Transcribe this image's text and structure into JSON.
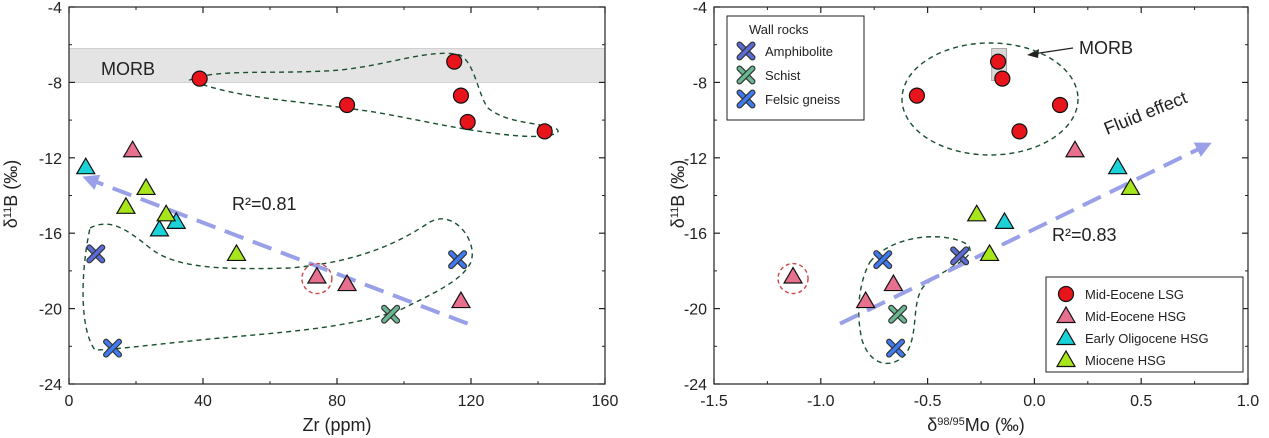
{
  "chart_data": [
    {
      "type": "scatter",
      "xlabel": "Zr (ppm)",
      "ylabel": "δ11B (‰)",
      "xlim": [
        0,
        160
      ],
      "ylim": [
        -24,
        -4
      ],
      "xticks": [
        "0",
        "40",
        "80",
        "120",
        "160"
      ],
      "yticks": [
        "-4",
        "-8",
        "-12",
        "-16",
        "-20",
        "-24"
      ],
      "annotations": {
        "morb": "MORB",
        "r2": "R²=0.81"
      },
      "morb_band": [
        -8,
        -6.2
      ],
      "series": [
        {
          "name": "Mid-Eocene LSG",
          "marker": "circle",
          "color": "#e8141b",
          "points": [
            [
              39,
              -7.8
            ],
            [
              83,
              -9.2
            ],
            [
              115,
              -6.9
            ],
            [
              117,
              -8.7
            ],
            [
              119,
              -10.1
            ],
            [
              142,
              -10.6
            ]
          ]
        },
        {
          "name": "Mid-Eocene HSG",
          "marker": "triangle",
          "color": "#e8708f",
          "points": [
            [
              19,
              -11.6
            ],
            [
              74,
              -18.3
            ],
            [
              83,
              -18.7
            ],
            [
              117,
              -19.6
            ]
          ]
        },
        {
          "name": "Early Oligocene HSG",
          "marker": "triangle",
          "color": "#19d3d9",
          "points": [
            [
              5,
              -12.5
            ],
            [
              27,
              -15.8
            ],
            [
              32,
              -15.4
            ]
          ]
        },
        {
          "name": "Miocene HSG",
          "marker": "triangle",
          "color": "#a8e61c",
          "points": [
            [
              17,
              -14.6
            ],
            [
              23,
              -13.6
            ],
            [
              29,
              -15.0
            ],
            [
              50,
              -17.1
            ]
          ]
        },
        {
          "name": "Amphibolite",
          "marker": "x",
          "color": "#5a6bd6",
          "points": [
            [
              8,
              -17.1
            ]
          ]
        },
        {
          "name": "Schist",
          "marker": "x",
          "color": "#69b891",
          "points": [
            [
              96,
              -20.3
            ]
          ]
        },
        {
          "name": "Felsic gneiss",
          "marker": "x",
          "color": "#3f7bf0",
          "points": [
            [
              13,
              -22.1
            ],
            [
              116,
              -17.4
            ]
          ]
        }
      ],
      "trend_line": {
        "from": [
          119,
          -20.8
        ],
        "to": [
          4,
          -13.0
        ],
        "color": "#9aa0e8"
      },
      "circled_point": [
        74,
        -18.3
      ]
    },
    {
      "type": "scatter",
      "xlabel": "δ98/95Mo (‰)",
      "ylabel": "δ11B (‰)",
      "xlim": [
        -1.5,
        1.0
      ],
      "ylim": [
        -24,
        -4
      ],
      "xticks": [
        "-1.5",
        "-1.0",
        "-0.5",
        "0.0",
        "0.5",
        "1.0"
      ],
      "yticks": [
        "-4",
        "-8",
        "-12",
        "-16",
        "-20",
        "-24"
      ],
      "annotations": {
        "morb": "MORB",
        "fluid": "Fluid effect",
        "r2": "R²=0.83"
      },
      "morb_box": {
        "x": [
          -0.2,
          -0.13
        ],
        "y": [
          -7.9,
          -6.2
        ]
      },
      "series": [
        {
          "name": "Mid-Eocene LSG",
          "marker": "circle",
          "color": "#e8141b",
          "points": [
            [
              -0.17,
              -6.9
            ],
            [
              -0.15,
              -7.8
            ],
            [
              -0.55,
              -8.7
            ],
            [
              -0.07,
              -10.6
            ],
            [
              0.12,
              -9.2
            ]
          ]
        },
        {
          "name": "Mid-Eocene HSG",
          "marker": "triangle",
          "color": "#e8708f",
          "points": [
            [
              0.19,
              -11.6
            ],
            [
              -1.13,
              -18.3
            ],
            [
              -0.79,
              -19.6
            ],
            [
              -0.66,
              -18.7
            ]
          ]
        },
        {
          "name": "Early Oligocene HSG",
          "marker": "triangle",
          "color": "#19d3d9",
          "points": [
            [
              0.39,
              -12.5
            ],
            [
              -0.14,
              -15.4
            ]
          ]
        },
        {
          "name": "Miocene HSG",
          "marker": "triangle",
          "color": "#a8e61c",
          "points": [
            [
              0.45,
              -13.6
            ],
            [
              -0.27,
              -15.0
            ],
            [
              -0.21,
              -17.1
            ]
          ]
        },
        {
          "name": "Amphibolite",
          "marker": "x",
          "color": "#5a6bd6",
          "points": [
            [
              -0.35,
              -17.2
            ]
          ]
        },
        {
          "name": "Schist",
          "marker": "x",
          "color": "#69b891",
          "points": [
            [
              -0.64,
              -20.3
            ]
          ]
        },
        {
          "name": "Felsic gneiss",
          "marker": "x",
          "color": "#3f7bf0",
          "points": [
            [
              -0.71,
              -17.4
            ],
            [
              -0.65,
              -22.1
            ]
          ]
        }
      ],
      "trend_line": {
        "from": [
          -0.91,
          -20.8
        ],
        "to": [
          0.83,
          -11.2
        ],
        "color": "#9aa0e8"
      },
      "circled_point": [
        -1.13,
        -18.3
      ],
      "legend_wallrocks": {
        "title": "Wall rocks",
        "items": [
          "Amphibolite",
          "Schist",
          "Felsic gneiss"
        ]
      },
      "legend_samples": {
        "items": [
          "Mid-Eocene  LSG",
          "Mid-Eocene  HSG",
          "Early Oligocene  HSG",
          "Miocene HSG"
        ]
      }
    }
  ]
}
